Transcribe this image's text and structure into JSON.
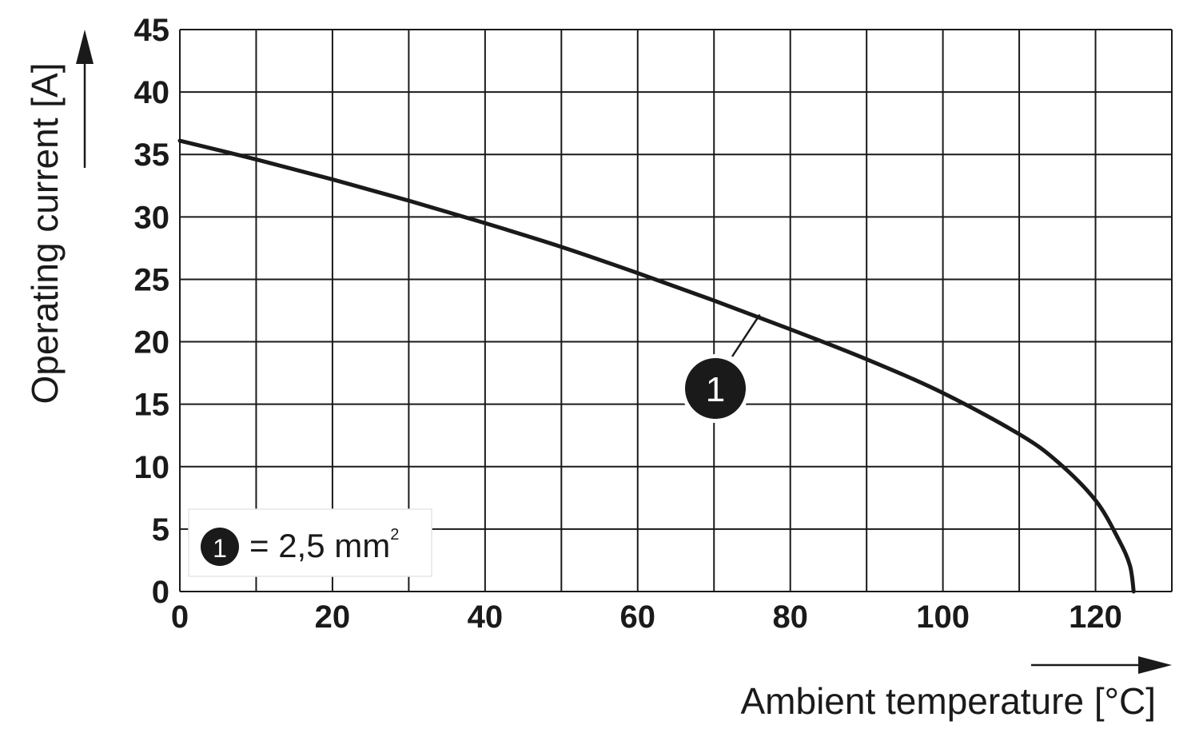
{
  "chart_data": {
    "type": "line",
    "xlabel": "Ambient temperature [°C]",
    "ylabel": "Operating current [A]",
    "xlim": [
      0,
      130
    ],
    "ylim": [
      0,
      45
    ],
    "x_ticks": [
      0,
      20,
      40,
      60,
      80,
      100,
      120
    ],
    "x_grid_step": 10,
    "y_ticks": [
      0,
      5,
      10,
      15,
      20,
      25,
      30,
      35,
      40,
      45
    ],
    "grid": true,
    "legend": {
      "placement": "bottom-left",
      "marker": "1",
      "text": "= 2,5 mm",
      "superscript": "2"
    },
    "series": [
      {
        "marker_label": "1",
        "color": "#1a1a1a",
        "x": [
          0,
          10,
          20,
          30,
          40,
          50,
          60,
          70,
          80,
          90,
          100,
          110,
          115,
          120,
          123,
          124.5,
          125
        ],
        "y": [
          36.1,
          34.6,
          33.0,
          31.3,
          29.5,
          27.6,
          25.5,
          23.3,
          21.0,
          18.6,
          15.9,
          12.6,
          10.4,
          7.3,
          4.2,
          2.1,
          0
        ]
      }
    ],
    "annotation": {
      "label": "1",
      "points_to_x": 76
    }
  }
}
